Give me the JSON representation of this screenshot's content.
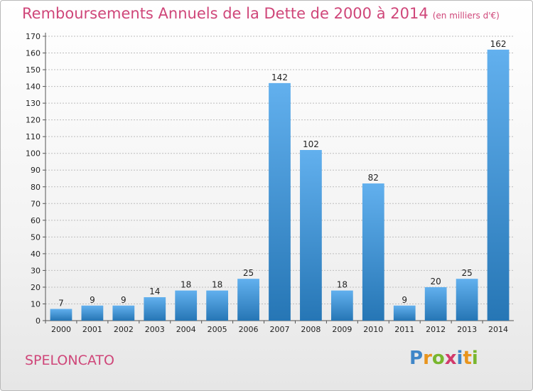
{
  "title": "Remboursements Annuels de la Dette de 2000 à 2014",
  "unit": "(en milliers d'€)",
  "commune": "SPELONCATO",
  "logo": {
    "text": "Proxiti",
    "letters": [
      "P",
      "r",
      "o",
      "x",
      "i",
      "t",
      "i"
    ],
    "colors": [
      "#3f86c8",
      "#e8941d",
      "#79b62e",
      "#d23a6b",
      "#3f86c8",
      "#e8941d",
      "#79b62e"
    ]
  },
  "colors": {
    "bar_light": "#62b0ee",
    "bar_dark": "#2676b5",
    "accent": "#cf4679",
    "grid": "#bdbdbd"
  },
  "chart_data": {
    "type": "bar",
    "categories": [
      "2000",
      "2001",
      "2002",
      "2003",
      "2004",
      "2005",
      "2006",
      "2007",
      "2008",
      "2009",
      "2010",
      "2011",
      "2012",
      "2013",
      "2014"
    ],
    "values": [
      7,
      9,
      9,
      14,
      18,
      18,
      25,
      142,
      102,
      18,
      82,
      9,
      20,
      25,
      162
    ],
    "ylim": [
      0,
      170
    ],
    "yticks": [
      0,
      10,
      20,
      30,
      40,
      50,
      60,
      70,
      80,
      90,
      100,
      110,
      120,
      130,
      140,
      150,
      160,
      170
    ],
    "grid": true,
    "data_labels": true
  }
}
